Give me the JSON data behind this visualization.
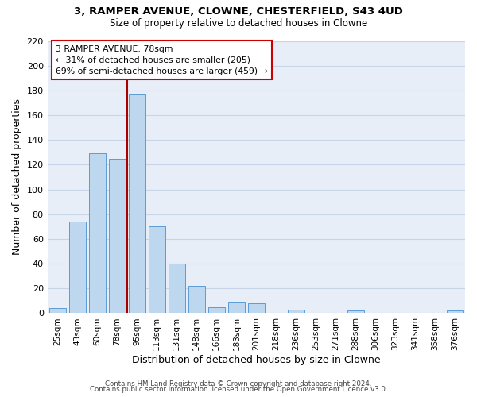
{
  "title1": "3, RAMPER AVENUE, CLOWNE, CHESTERFIELD, S43 4UD",
  "title2": "Size of property relative to detached houses in Clowne",
  "xlabel": "Distribution of detached houses by size in Clowne",
  "ylabel": "Number of detached properties",
  "bar_labels": [
    "25sqm",
    "43sqm",
    "60sqm",
    "78sqm",
    "95sqm",
    "113sqm",
    "131sqm",
    "148sqm",
    "166sqm",
    "183sqm",
    "201sqm",
    "218sqm",
    "236sqm",
    "253sqm",
    "271sqm",
    "288sqm",
    "306sqm",
    "323sqm",
    "341sqm",
    "358sqm",
    "376sqm"
  ],
  "bar_heights": [
    4,
    74,
    129,
    125,
    177,
    70,
    40,
    22,
    5,
    9,
    8,
    0,
    3,
    0,
    0,
    2,
    0,
    0,
    0,
    0,
    2
  ],
  "bar_color": "#bdd7ee",
  "bar_edge_color": "#5b9bd5",
  "highlight_line_after_index": 3,
  "highlight_line_color": "#aa0000",
  "annotation_text_line1": "3 RAMPER AVENUE: 78sqm",
  "annotation_text_line2": "← 31% of detached houses are smaller (205)",
  "annotation_text_line3": "69% of semi-detached houses are larger (459) →",
  "annotation_box_facecolor": "#ffffff",
  "annotation_box_edgecolor": "#cc0000",
  "ylim": [
    0,
    220
  ],
  "yticks": [
    0,
    20,
    40,
    60,
    80,
    100,
    120,
    140,
    160,
    180,
    200,
    220
  ],
  "footer_line1": "Contains HM Land Registry data © Crown copyright and database right 2024.",
  "footer_line2": "Contains public sector information licensed under the Open Government Licence v3.0.",
  "grid_color": "#c8d4e8",
  "background_color": "#e8eef7"
}
